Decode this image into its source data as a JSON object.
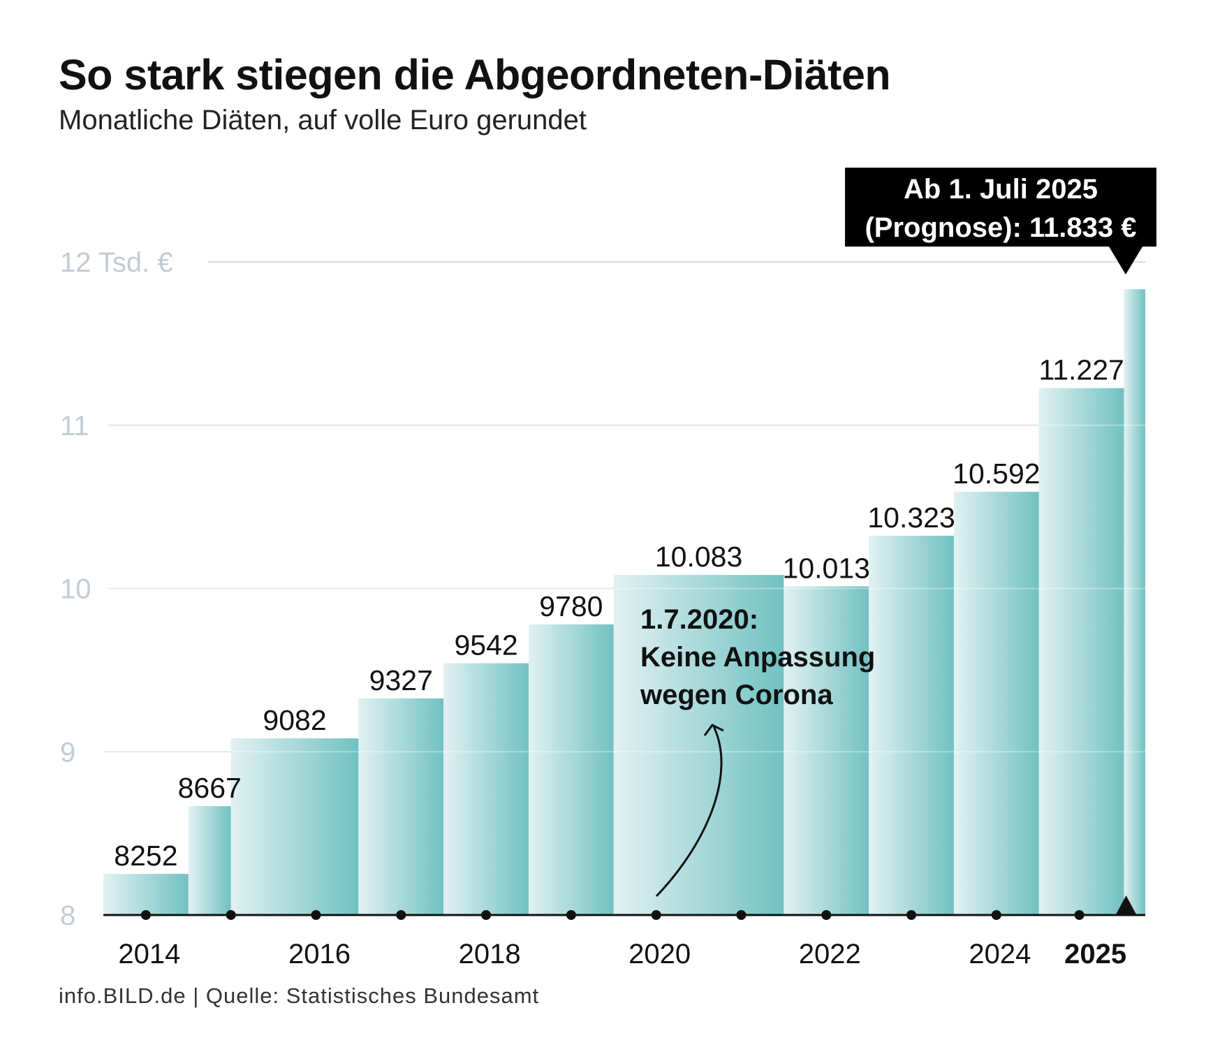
{
  "title": "So stark stiegen die Abgeordneten-Diäten",
  "subtitle": "Monatliche Diäten, auf volle Euro gerundet",
  "source": "info.BILD.de | Quelle: Statistisches Bundesamt",
  "colors": {
    "fill_light": "#e2f1f2",
    "fill_dark": "#71c1c2",
    "grid": "#d7dde3",
    "axis_label": "#c3ccd6",
    "text": "#111111"
  },
  "chart_data": {
    "type": "area",
    "step": true,
    "y_axis_unit": "Tsd. €",
    "y_ticks": [
      {
        "value": 8,
        "label": "8"
      },
      {
        "value": 9,
        "label": "9"
      },
      {
        "value": 10,
        "label": "10"
      },
      {
        "value": 11,
        "label": "11"
      },
      {
        "value": 12,
        "label": "12 Tsd. €"
      }
    ],
    "ylim": [
      8,
      12
    ],
    "xlim": [
      2013.5,
      2025.75
    ],
    "x_ticks": [
      {
        "value": 2014,
        "label": "2014",
        "bold": false
      },
      {
        "value": 2016,
        "label": "2016",
        "bold": false
      },
      {
        "value": 2018,
        "label": "2018",
        "bold": false
      },
      {
        "value": 2020,
        "label": "2020",
        "bold": false
      },
      {
        "value": 2022,
        "label": "2022",
        "bold": false
      },
      {
        "value": 2024,
        "label": "2024",
        "bold": false
      },
      {
        "value": 2025,
        "label": "2025",
        "bold": true
      }
    ],
    "year_markers": [
      2014,
      2015,
      2016,
      2017,
      2018,
      2019,
      2020,
      2021,
      2022,
      2023,
      2024,
      2025
    ],
    "steps": [
      {
        "from": 2013.5,
        "to": 2014.5,
        "value": 8252,
        "label": "8252"
      },
      {
        "from": 2014.5,
        "to": 2015.0,
        "value": 8667,
        "label": "8667"
      },
      {
        "from": 2015.0,
        "to": 2016.5,
        "value": 9082,
        "label": "9082"
      },
      {
        "from": 2016.5,
        "to": 2017.5,
        "value": 9327,
        "label": "9327"
      },
      {
        "from": 2017.5,
        "to": 2018.5,
        "value": 9542,
        "label": "9542"
      },
      {
        "from": 2018.5,
        "to": 2019.5,
        "value": 9780,
        "label": "9780"
      },
      {
        "from": 2019.5,
        "to": 2021.5,
        "value": 10083,
        "label": "10.083"
      },
      {
        "from": 2021.5,
        "to": 2022.5,
        "value": 10013,
        "label": "10.013"
      },
      {
        "from": 2022.5,
        "to": 2023.5,
        "value": 10323,
        "label": "10.323"
      },
      {
        "from": 2023.5,
        "to": 2024.5,
        "value": 10592,
        "label": "10.592"
      },
      {
        "from": 2024.5,
        "to": 2025.5,
        "value": 11227,
        "label": "11.227"
      },
      {
        "from": 2025.5,
        "to": 2025.75,
        "value": 11833,
        "label": ""
      }
    ],
    "callout": {
      "lines": [
        "Ab 1. Juli 2025",
        "(Prognose): 11.833 €"
      ],
      "value": 11833
    },
    "annotation": {
      "lines": [
        "1.7.2020:",
        "Keine Anpassung",
        "wegen Corona"
      ],
      "x": 2020
    }
  }
}
